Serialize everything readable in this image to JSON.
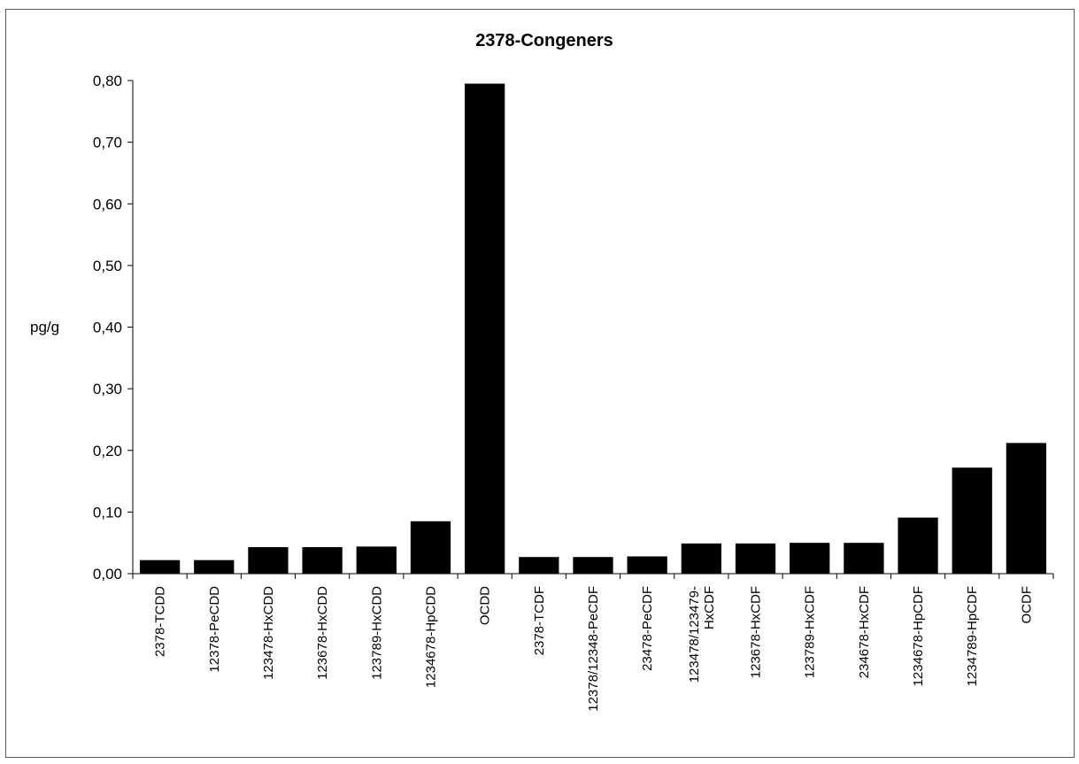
{
  "chart_data": {
    "type": "bar",
    "title": "2378-Congeners",
    "xlabel": "",
    "ylabel": "pg/g",
    "ylim": [
      0,
      0.8
    ],
    "yticks": [
      "0,00",
      "0,10",
      "0,20",
      "0,30",
      "0,40",
      "0,50",
      "0,60",
      "0,70",
      "0,80"
    ],
    "grid": false,
    "bar_color": "#000000",
    "categories": [
      "2378-TCDD",
      "12378-PeCDD",
      "123478-HxCDD",
      "123678-HxCDD",
      "123789-HxCDD",
      "1234678-HpCDD",
      "OCDD",
      "2378-TCDF",
      "12378/12348-PeCDF",
      "23478-PeCDF",
      "123478/123479-HxCDF",
      "123678-HxCDF",
      "123789-HxCDF",
      "234678-HxCDF",
      "1234678-HpCDF",
      "1234789-HpCDF",
      "OCDF"
    ],
    "category_lines": [
      [
        "2378-TCDD"
      ],
      [
        "12378-PeCDD"
      ],
      [
        "123478-HxCDD"
      ],
      [
        "123678-HxCDD"
      ],
      [
        "123789-HxCDD"
      ],
      [
        "1234678-HpCDD"
      ],
      [
        "OCDD"
      ],
      [
        "2378-TCDF"
      ],
      [
        "12378/12348-PeCDF"
      ],
      [
        "23478-PeCDF"
      ],
      [
        "123478/123479-",
        "HxCDF"
      ],
      [
        "123678-HxCDF"
      ],
      [
        "123789-HxCDF"
      ],
      [
        "234678-HxCDF"
      ],
      [
        "1234678-HpCDF"
      ],
      [
        "1234789-HpCDF"
      ],
      [
        "OCDF"
      ]
    ],
    "values": [
      0.022,
      0.022,
      0.043,
      0.043,
      0.044,
      0.085,
      0.795,
      0.027,
      0.027,
      0.028,
      0.049,
      0.049,
      0.05,
      0.05,
      0.091,
      0.172,
      0.212
    ]
  }
}
